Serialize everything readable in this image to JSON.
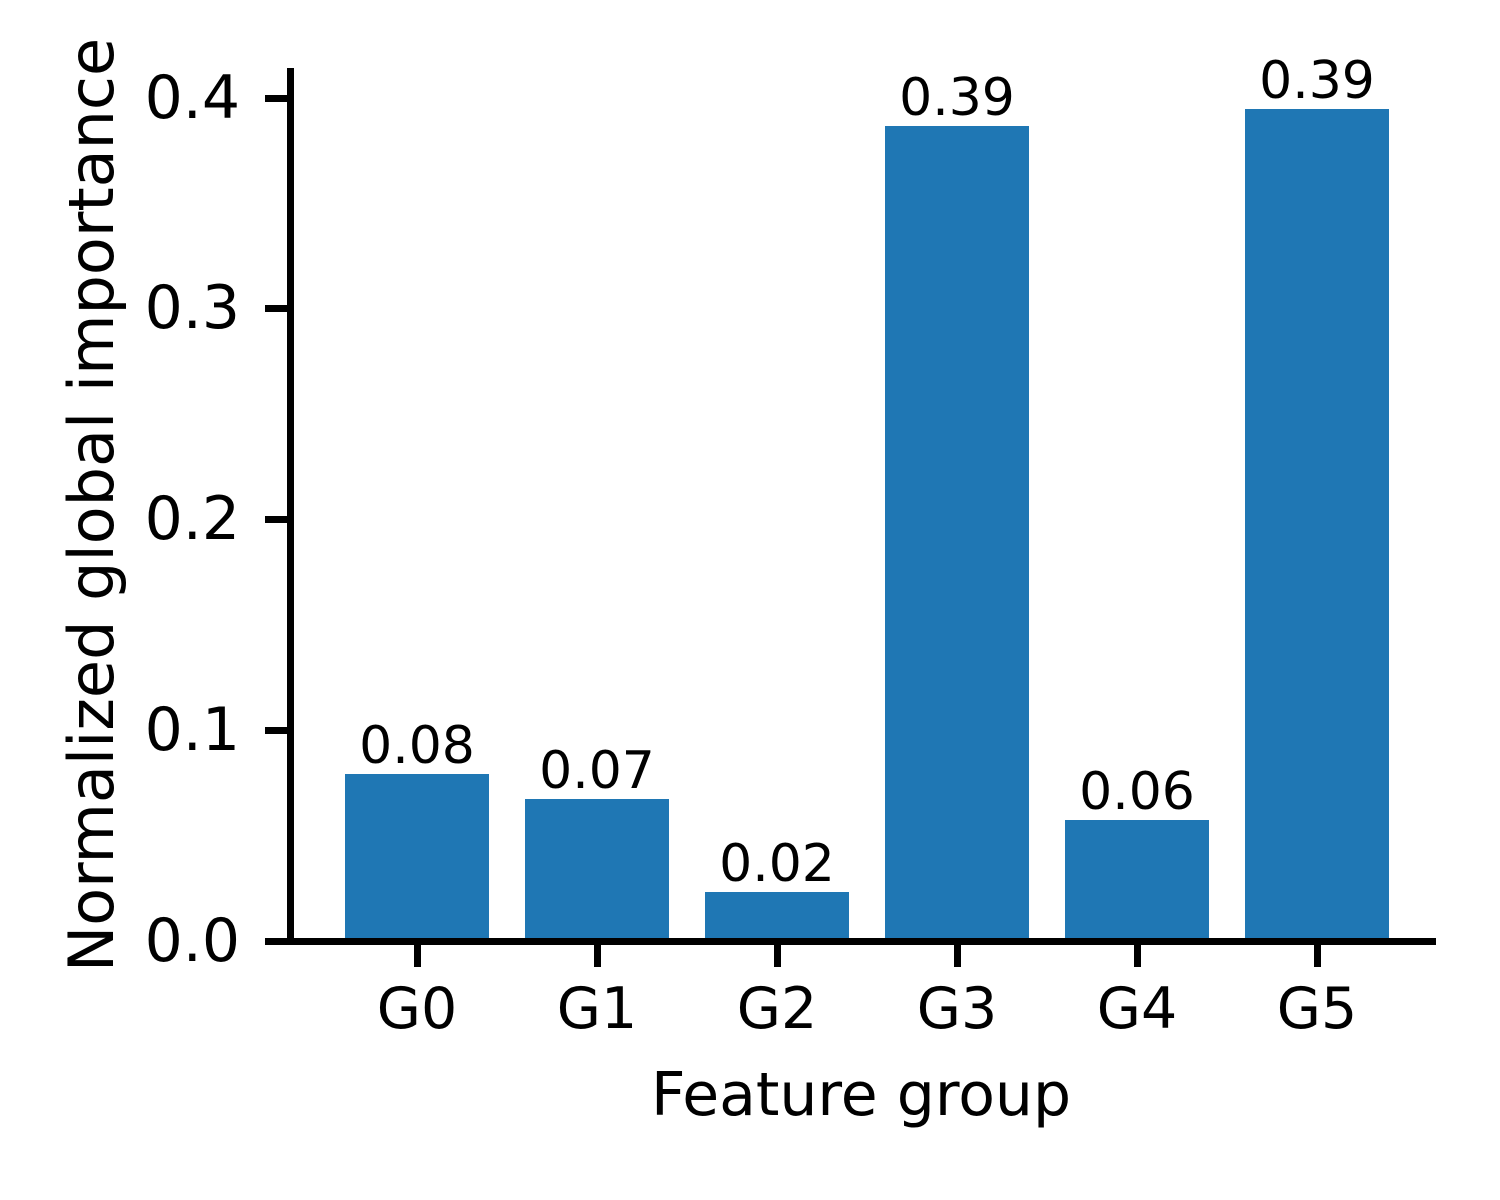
{
  "chart_data": {
    "type": "bar",
    "title": "",
    "xlabel": "Feature group",
    "ylabel": "Normalized global importance",
    "categories": [
      "G0",
      "G1",
      "G2",
      "G3",
      "G4",
      "G5"
    ],
    "values": [
      0.078,
      0.066,
      0.022,
      0.385,
      0.056,
      0.393
    ],
    "bar_labels": [
      "0.08",
      "0.07",
      "0.02",
      "0.39",
      "0.06",
      "0.39"
    ],
    "yticks": [
      {
        "label": "0.0",
        "value": 0.0
      },
      {
        "label": "0.1",
        "value": 0.1
      },
      {
        "label": "0.2",
        "value": 0.2
      },
      {
        "label": "0.3",
        "value": 0.3
      },
      {
        "label": "0.4",
        "value": 0.4
      }
    ],
    "ylim": [
      0,
      0.414
    ],
    "grid": false,
    "legend": null,
    "bar_color": "#1f77b4",
    "axis_color": "#000000",
    "text_color": "#000000",
    "background": "#ffffff"
  }
}
